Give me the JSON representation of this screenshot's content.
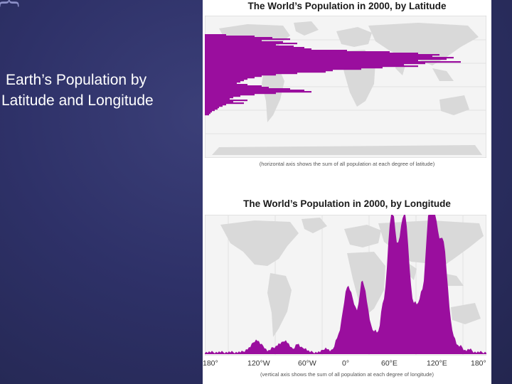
{
  "slide": {
    "title_line1": "Earth’s Population by",
    "title_line2": "Latitude and Longitude"
  },
  "figures": {
    "latitude": {
      "title": "The World’s Population in 2000, by Latitude",
      "caption": "(horizontal axis shows the sum of all population at each degree of latitude)"
    },
    "longitude": {
      "title": "The World’s Population in 2000, by Longitude",
      "caption": "(vertical axis shows the sum of all population at each degree of longitude)",
      "tick_labels": [
        "180°",
        "120°W",
        "60°W",
        "0°",
        "60°E",
        "120°E",
        "180°"
      ]
    }
  },
  "colors": {
    "population": "#9a0e9e",
    "land": "#d9d9d9",
    "background": "#2e3168"
  }
}
